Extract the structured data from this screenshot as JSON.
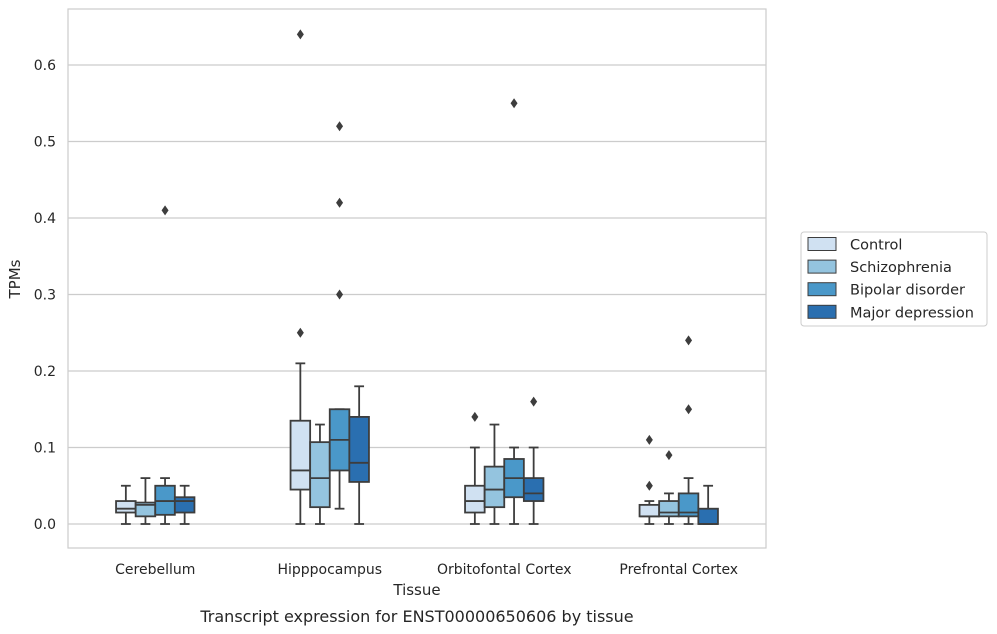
{
  "caption": "Transcript expression for ENST00000650606 by tissue",
  "chart_data": {
    "type": "box",
    "xlabel": "Tissue",
    "ylabel": "TPMs",
    "ylim": [
      -0.031,
      0.67
    ],
    "yticks": [
      0.0,
      0.1,
      0.2,
      0.3,
      0.4,
      0.5,
      0.6
    ],
    "ytick_labels": [
      "0.0",
      "0.1",
      "0.2",
      "0.3",
      "0.4",
      "0.5",
      "0.6"
    ],
    "grid": "horizontal",
    "legend_position": "right",
    "categories": [
      "Cerebellum",
      "Hipppocampus",
      "Orbitofontal Cortex",
      "Prefrontal Cortex"
    ],
    "series": [
      {
        "name": "Control",
        "color": "#d0e1f2",
        "boxes": [
          {
            "whislo": 0.0,
            "q1": 0.015,
            "med": 0.02,
            "q3": 0.03,
            "whishi": 0.05,
            "fliers": []
          },
          {
            "whislo": 0.0,
            "q1": 0.045,
            "med": 0.07,
            "q3": 0.135,
            "whishi": 0.21,
            "fliers": [
              0.25,
              0.64
            ]
          },
          {
            "whislo": 0.0,
            "q1": 0.015,
            "med": 0.03,
            "q3": 0.05,
            "whishi": 0.1,
            "fliers": [
              0.14
            ]
          },
          {
            "whislo": 0.0,
            "q1": 0.01,
            "med": 0.01,
            "q3": 0.025,
            "whishi": 0.03,
            "fliers": [
              0.05,
              0.11
            ]
          }
        ]
      },
      {
        "name": "Schizophrenia",
        "color": "#94c4df",
        "boxes": [
          {
            "whislo": 0.0,
            "q1": 0.01,
            "med": 0.025,
            "q3": 0.028,
            "whishi": 0.06,
            "fliers": []
          },
          {
            "whislo": 0.0,
            "q1": 0.022,
            "med": 0.06,
            "q3": 0.107,
            "whishi": 0.13,
            "fliers": []
          },
          {
            "whislo": 0.0,
            "q1": 0.022,
            "med": 0.045,
            "q3": 0.075,
            "whishi": 0.13,
            "fliers": []
          },
          {
            "whislo": 0.0,
            "q1": 0.01,
            "med": 0.015,
            "q3": 0.03,
            "whishi": 0.04,
            "fliers": [
              0.09
            ]
          }
        ]
      },
      {
        "name": "Bipolar disorder",
        "color": "#4a98c9",
        "boxes": [
          {
            "whislo": 0.0,
            "q1": 0.012,
            "med": 0.03,
            "q3": 0.05,
            "whishi": 0.06,
            "fliers": [
              0.41
            ]
          },
          {
            "whislo": 0.02,
            "q1": 0.07,
            "med": 0.11,
            "q3": 0.15,
            "whishi": 0.15,
            "fliers": [
              0.3,
              0.42,
              0.52
            ]
          },
          {
            "whislo": 0.0,
            "q1": 0.035,
            "med": 0.06,
            "q3": 0.085,
            "whishi": 0.1,
            "fliers": [
              0.55
            ]
          },
          {
            "whislo": 0.0,
            "q1": 0.01,
            "med": 0.015,
            "q3": 0.04,
            "whishi": 0.06,
            "fliers": [
              0.15,
              0.24
            ]
          }
        ]
      },
      {
        "name": "Major depression",
        "color": "#2a6fb0",
        "boxes": [
          {
            "whislo": 0.0,
            "q1": 0.015,
            "med": 0.03,
            "q3": 0.035,
            "whishi": 0.05,
            "fliers": []
          },
          {
            "whislo": 0.0,
            "q1": 0.055,
            "med": 0.08,
            "q3": 0.14,
            "whishi": 0.18,
            "fliers": []
          },
          {
            "whislo": 0.0,
            "q1": 0.03,
            "med": 0.04,
            "q3": 0.06,
            "whishi": 0.1,
            "fliers": [
              0.16
            ]
          },
          {
            "whislo": 0.0,
            "q1": 0.0,
            "med": 0.0,
            "q3": 0.02,
            "whishi": 0.05,
            "fliers": []
          }
        ]
      }
    ]
  }
}
